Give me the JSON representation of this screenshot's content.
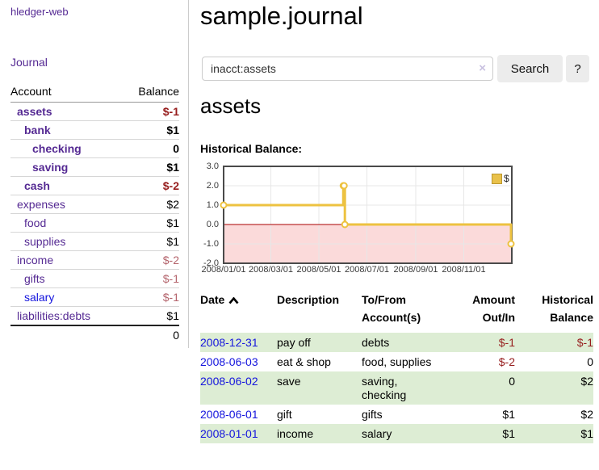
{
  "app": {
    "title": "hledger-web"
  },
  "sidebar": {
    "journal_label": "Journal",
    "accounts": {
      "headers": [
        "Account",
        "Balance"
      ],
      "rows": [
        {
          "name": "assets",
          "level": 1,
          "account_class": "acct-bold",
          "balance": "$-1",
          "balance_class": "neg-bold"
        },
        {
          "name": "bank",
          "level": 2,
          "account_class": "acct-bold",
          "balance": "$1",
          "balance_class": "pos-bold"
        },
        {
          "name": "checking",
          "level": 3,
          "account_class": "acct-bold",
          "balance": "0",
          "balance_class": "pos-bold"
        },
        {
          "name": "saving",
          "level": 3,
          "account_class": "acct-bold",
          "balance": "$1",
          "balance_class": "pos-bold"
        },
        {
          "name": "cash",
          "level": 2,
          "account_class": "acct-bold",
          "balance": "$-2",
          "balance_class": "neg-bold"
        },
        {
          "name": "expenses",
          "level": 1,
          "account_class": "acct",
          "balance": "$2",
          "balance_class": "pos"
        },
        {
          "name": "food",
          "level": 2,
          "account_class": "acct",
          "balance": "$1",
          "balance_class": "pos"
        },
        {
          "name": "supplies",
          "level": 2,
          "account_class": "acct",
          "balance": "$1",
          "balance_class": "pos"
        },
        {
          "name": "income",
          "level": 1,
          "account_class": "acct",
          "balance": "$-2",
          "balance_class": "neg-soft"
        },
        {
          "name": "gifts",
          "level": 2,
          "account_class": "acct",
          "balance": "$-1",
          "balance_class": "neg-soft"
        },
        {
          "name": "salary",
          "level": 2,
          "account_class": "acct-blue",
          "balance": "$-1",
          "balance_class": "neg-soft"
        },
        {
          "name": "liabilities:debts",
          "level": 1,
          "account_class": "acct",
          "balance": "$1",
          "balance_class": "pos"
        }
      ],
      "total": "0"
    }
  },
  "main": {
    "title": "sample.journal",
    "search": {
      "value": "inacct:assets",
      "clear_icon": "×",
      "search_label": "Search",
      "help_label": "?"
    },
    "account_heading": "assets",
    "chart_label": "Historical Balance:"
  },
  "chart_data": {
    "type": "line",
    "title": "Historical Balance",
    "step": true,
    "series": [
      {
        "name": "$",
        "color": "#edc240",
        "points": [
          [
            "2008-01-01",
            1
          ],
          [
            "2008-06-01",
            2
          ],
          [
            "2008-06-02",
            2
          ],
          [
            "2008-06-03",
            0
          ],
          [
            "2008-12-31",
            -1
          ]
        ]
      }
    ],
    "ylim": [
      -2,
      3
    ],
    "yticks": [
      3.0,
      2.0,
      1.0,
      0.0,
      -1.0,
      -2.0
    ],
    "xticks": [
      "2008/01/01",
      "2008/03/01",
      "2008/05/01",
      "2008/07/01",
      "2008/09/01",
      "2008/11/01"
    ],
    "grid": true,
    "legend_position": "top-right",
    "legend_label": "$",
    "negative_region_fill": "#fbdada",
    "zero_line_color": "#aa0000",
    "grid_color": "#e7e7e7",
    "border_color": "#4a4a4a"
  },
  "register": {
    "headers": {
      "date": "Date",
      "description": "Description",
      "accounts": "To/From Account(s)",
      "amount": "Amount Out/In",
      "balance": "Historical Balance"
    },
    "rows": [
      {
        "date": "2008-12-31",
        "description": "pay off",
        "accounts": "debts",
        "amount": "$-1",
        "amount_neg": true,
        "balance": "$-1",
        "balance_neg": true,
        "highlight": true
      },
      {
        "date": "2008-06-03",
        "description": "eat & shop",
        "accounts": "food, supplies",
        "amount": "$-2",
        "amount_neg": true,
        "balance": "0",
        "balance_neg": false,
        "highlight": false
      },
      {
        "date": "2008-06-02",
        "description": "save",
        "accounts": "saving, checking",
        "amount": "0",
        "amount_neg": false,
        "balance": "$2",
        "balance_neg": false,
        "highlight": true
      },
      {
        "date": "2008-06-01",
        "description": "gift",
        "accounts": "gifts",
        "amount": "$1",
        "amount_neg": false,
        "balance": "$2",
        "balance_neg": false,
        "highlight": false
      },
      {
        "date": "2008-01-01",
        "description": "income",
        "accounts": "salary",
        "amount": "$1",
        "amount_neg": false,
        "balance": "$1",
        "balance_neg": false,
        "highlight": true
      }
    ]
  },
  "colors": {
    "accent_purple": "#552a93",
    "link_blue": "#1414dd",
    "negative_red": "#961c1c",
    "negative_soft_red": "#b4646c",
    "row_highlight_green": "#ddedd4",
    "chart_line_gold": "#edc240",
    "negative_region_pink": "#fbdada",
    "zero_line_red": "#aa0000",
    "button_gray": "#ececec"
  }
}
